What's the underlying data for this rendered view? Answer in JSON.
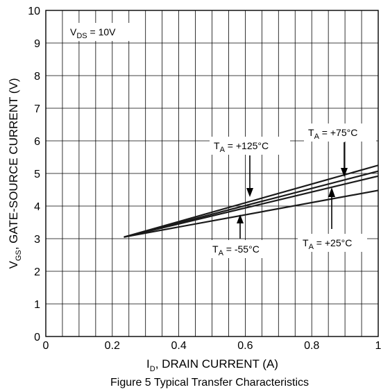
{
  "chart_data": {
    "type": "line",
    "caption": "Figure 5  Typical Transfer Characteristics",
    "xlabel": {
      "main": "I",
      "sub": "D",
      "rest": ", DRAIN CURRENT (A)"
    },
    "ylabel": {
      "main": "V",
      "sub": "GS",
      "rest": ", GATE-SOURCE CURRENT (V)"
    },
    "xlim": [
      0,
      1
    ],
    "ylim": [
      0,
      10
    ],
    "x_ticks": [
      "0",
      "0.2",
      "0.4",
      "0.6",
      "0.8",
      "1"
    ],
    "y_ticks": [
      "0",
      "1",
      "2",
      "3",
      "4",
      "5",
      "6",
      "7",
      "8",
      "9",
      "10"
    ],
    "grid": true,
    "condition": {
      "main": "V",
      "sub": "DS",
      "rest": " = 10V"
    },
    "series": [
      {
        "name": {
          "main": "T",
          "sub": "A",
          "rest": " = -55°C"
        },
        "x": [
          0.235,
          1.0
        ],
        "y": [
          3.05,
          5.25
        ]
      },
      {
        "name": {
          "main": "T",
          "sub": "A",
          "rest": " = +25°C"
        },
        "x": [
          0.235,
          1.0
        ],
        "y": [
          3.05,
          5.07
        ]
      },
      {
        "name": {
          "main": "T",
          "sub": "A",
          "rest": " = +75°C"
        },
        "x": [
          0.235,
          1.0
        ],
        "y": [
          3.05,
          4.92
        ]
      },
      {
        "name": {
          "main": "T",
          "sub": "A",
          "rest": " = +125°C"
        },
        "x": [
          0.235,
          1.0
        ],
        "y": [
          3.05,
          4.48
        ]
      }
    ]
  }
}
